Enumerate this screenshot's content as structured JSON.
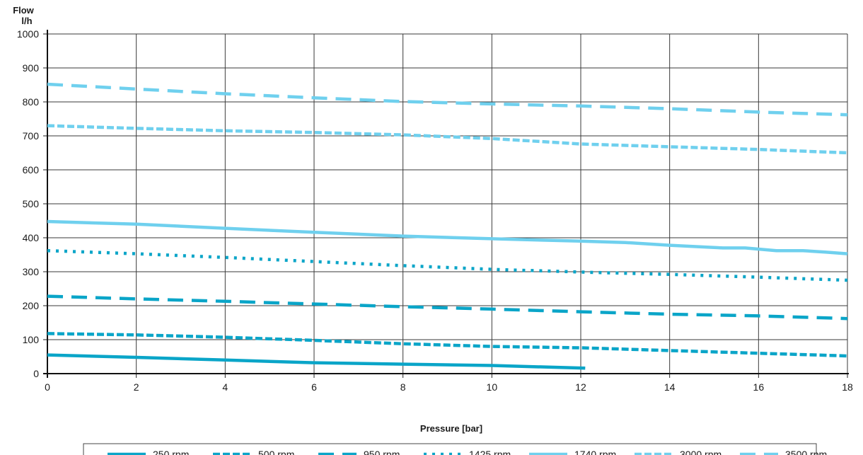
{
  "chart_data": {
    "type": "line",
    "title": "",
    "ylabel_line1": "Flow",
    "ylabel_line2": "l/h",
    "xlabel": "Pressure [bar]",
    "xlim": [
      0,
      18
    ],
    "ylim": [
      0,
      1000
    ],
    "xticks": [
      0,
      2,
      4,
      6,
      8,
      10,
      12,
      14,
      16,
      18
    ],
    "yticks": [
      0,
      100,
      200,
      300,
      400,
      500,
      600,
      700,
      800,
      900,
      1000
    ],
    "grid": true,
    "legend_position": "bottom",
    "series": [
      {
        "name": "250 rpm",
        "color": "#0aa5c8",
        "style": "solid-thick",
        "x": [
          0,
          2,
          4,
          6,
          8,
          10,
          12.1
        ],
        "y": [
          55,
          48,
          40,
          32,
          28,
          24,
          16
        ]
      },
      {
        "name": "500 rpm",
        "color": "#0aa5c8",
        "style": "short-dash",
        "x": [
          0,
          2,
          4,
          6,
          8,
          10,
          12,
          14,
          16,
          18
        ],
        "y": [
          118,
          114,
          107,
          98,
          88,
          80,
          76,
          68,
          60,
          52
        ]
      },
      {
        "name": "950 rpm",
        "color": "#0aa5c8",
        "style": "long-dash",
        "x": [
          0,
          2,
          4,
          6,
          8,
          10,
          12,
          14,
          16,
          18
        ],
        "y": [
          228,
          220,
          213,
          205,
          197,
          190,
          182,
          175,
          170,
          162
        ]
      },
      {
        "name": "1425 rpm",
        "color": "#0aa5c8",
        "style": "dotted",
        "x": [
          0,
          2,
          4,
          6,
          8,
          10,
          12,
          14,
          16,
          18
        ],
        "y": [
          362,
          353,
          342,
          330,
          318,
          307,
          299,
          292,
          284,
          275
        ]
      },
      {
        "name": "1740 rpm",
        "color": "#6fd0ee",
        "style": "solid",
        "x": [
          0,
          2,
          4,
          6,
          8,
          10,
          12,
          13,
          14,
          15.2,
          15.7,
          16.4,
          17,
          17.5,
          18
        ],
        "y": [
          448,
          440,
          428,
          416,
          405,
          397,
          390,
          386,
          378,
          370,
          370,
          362,
          362,
          358,
          353
        ]
      },
      {
        "name": "3000 rpm",
        "color": "#6fd0ee",
        "style": "short-dash",
        "x": [
          0,
          2,
          4,
          6,
          8,
          10,
          12,
          14,
          16,
          18
        ],
        "y": [
          730,
          722,
          715,
          710,
          703,
          692,
          676,
          668,
          660,
          650
        ]
      },
      {
        "name": "3500 rpm",
        "color": "#6fd0ee",
        "style": "long-dash",
        "x": [
          0,
          2,
          4,
          6,
          8,
          10,
          12,
          14,
          16,
          18
        ],
        "y": [
          852,
          838,
          824,
          812,
          801,
          794,
          788,
          780,
          770,
          762
        ]
      }
    ]
  }
}
